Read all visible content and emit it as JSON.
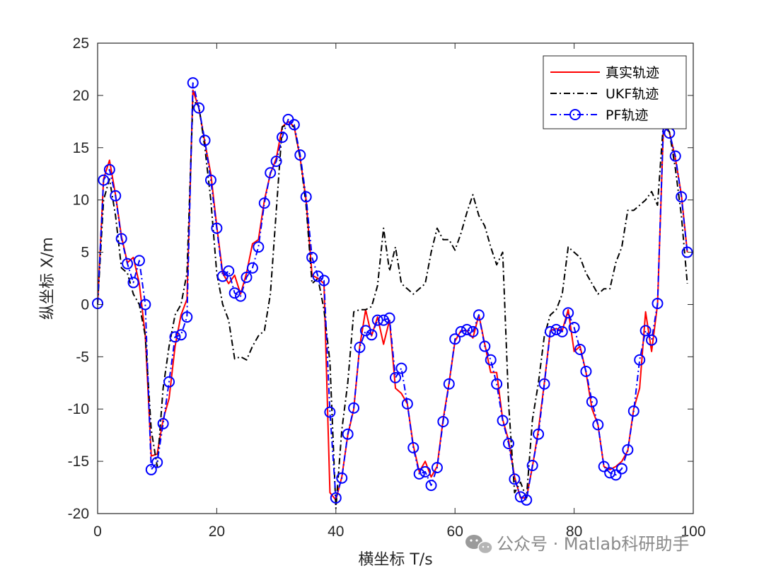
{
  "chart_data": {
    "type": "line",
    "title": "",
    "xlabel": "横坐标 T/s",
    "ylabel": "纵坐标 X/m",
    "xlim": [
      0,
      100
    ],
    "ylim": [
      -20,
      25
    ],
    "xticks": [
      0,
      20,
      40,
      60,
      80,
      100
    ],
    "yticks": [
      -20,
      -15,
      -10,
      -5,
      0,
      5,
      10,
      15,
      20,
      25
    ],
    "grid": false,
    "legend_position": "top-right",
    "series": [
      {
        "name": "真实轨迹",
        "color": "#ff0000",
        "style": "solid",
        "marker": "none",
        "x": [
          0,
          1,
          2,
          3,
          4,
          5,
          6,
          7,
          8,
          9,
          10,
          11,
          12,
          13,
          14,
          15,
          16,
          17,
          18,
          19,
          20,
          21,
          22,
          23,
          24,
          25,
          26,
          27,
          28,
          29,
          30,
          31,
          32,
          33,
          34,
          35,
          36,
          37,
          38,
          39,
          40,
          41,
          42,
          43,
          44,
          45,
          46,
          47,
          48,
          49,
          50,
          51,
          52,
          53,
          54,
          55,
          56,
          57,
          58,
          59,
          60,
          61,
          62,
          63,
          64,
          65,
          66,
          67,
          68,
          69,
          70,
          71,
          72,
          73,
          74,
          75,
          76,
          77,
          78,
          79,
          80,
          81,
          82,
          83,
          84,
          85,
          86,
          87,
          88,
          89,
          90,
          91,
          92,
          93,
          94,
          95,
          96,
          97,
          98,
          99
        ],
        "y": [
          0,
          12,
          13.8,
          10.5,
          6.5,
          4,
          4.5,
          2,
          -3,
          -14.5,
          -14.3,
          -11,
          -9,
          -4,
          -1,
          0.5,
          20.5,
          18.8,
          15.5,
          12.5,
          7.5,
          3,
          2,
          2.8,
          1,
          3,
          5.8,
          6.2,
          10,
          12.5,
          14,
          17,
          17.5,
          17,
          14,
          10,
          2.8,
          2.5,
          2,
          -18,
          -18.7,
          -16.5,
          -12.5,
          -10,
          -4,
          -0.5,
          -3,
          -1.2,
          -3.8,
          -1.5,
          -8,
          -8.5,
          -9.5,
          -13.5,
          -16,
          -15,
          -16.5,
          -15.5,
          -11,
          -7.5,
          -3.5,
          -2.5,
          -2.5,
          -3.2,
          -1,
          -3.8,
          -6.5,
          -6.5,
          -11,
          -13,
          -16.5,
          -18.5,
          -18.5,
          -15.5,
          -12,
          -7.5,
          -2.5,
          -2.3,
          -2.5,
          -0.5,
          -4.5,
          -4,
          -6.5,
          -10,
          -11.5,
          -15.5,
          -15.8,
          -15.5,
          -15,
          -14,
          -10,
          -8,
          -0.7,
          -4.5,
          0,
          17,
          16.5,
          14,
          10.5,
          5
        ]
      },
      {
        "name": "UKF轨迹",
        "color": "#000000",
        "style": "dashdot",
        "marker": "none",
        "x": [
          0,
          1,
          2,
          3,
          4,
          5,
          6,
          7,
          8,
          9,
          10,
          11,
          12,
          13,
          14,
          15,
          16,
          17,
          18,
          19,
          20,
          21,
          22,
          23,
          24,
          25,
          26,
          27,
          28,
          29,
          30,
          31,
          32,
          33,
          34,
          35,
          36,
          37,
          38,
          39,
          40,
          41,
          42,
          43,
          44,
          45,
          46,
          47,
          48,
          49,
          50,
          51,
          52,
          53,
          54,
          55,
          56,
          57,
          58,
          59,
          60,
          61,
          62,
          63,
          64,
          65,
          66,
          67,
          68,
          69,
          70,
          71,
          72,
          73,
          74,
          75,
          76,
          77,
          78,
          79,
          80,
          81,
          82,
          83,
          84,
          85,
          86,
          87,
          88,
          89,
          90,
          91,
          92,
          93,
          94,
          95,
          96,
          97,
          98,
          99
        ],
        "y": [
          0,
          10,
          12,
          8.5,
          3.5,
          3,
          1,
          0,
          -3,
          -12,
          -15.5,
          -8,
          -4,
          -1,
          0,
          3,
          19.5,
          19,
          15,
          10,
          3,
          0,
          -1.5,
          -5.2,
          -5,
          -5.3,
          -4,
          -3,
          -2.5,
          1,
          9,
          17,
          17.2,
          17,
          14,
          9.5,
          2,
          2.5,
          -0.5,
          -5.5,
          -19.5,
          -12,
          -7.5,
          -0.7,
          -0.5,
          -0.5,
          -0.2,
          1.8,
          7.3,
          3.2,
          5.5,
          2,
          1.5,
          1,
          1.5,
          2,
          5,
          7.3,
          6.2,
          6.2,
          5.2,
          6.8,
          8.8,
          10.5,
          8.5,
          7.5,
          5.5,
          3.8,
          5,
          -9.5,
          -18,
          -17,
          -18.5,
          -11,
          -7.5,
          -3,
          -1,
          -0.5,
          1,
          5.5,
          5,
          4.5,
          3,
          2,
          1,
          1.5,
          1.5,
          4,
          5.5,
          9,
          9,
          9.5,
          10,
          10.8,
          9.5,
          17.5,
          16.5,
          13,
          8.5,
          2
        ]
      },
      {
        "name": "PF轨迹",
        "color": "#0000ff",
        "style": "dashdot",
        "marker": "circle",
        "x": [
          0,
          1,
          2,
          3,
          4,
          5,
          6,
          7,
          8,
          9,
          10,
          11,
          12,
          13,
          14,
          15,
          16,
          17,
          18,
          19,
          20,
          21,
          22,
          23,
          24,
          25,
          26,
          27,
          28,
          29,
          30,
          31,
          32,
          33,
          34,
          35,
          36,
          37,
          38,
          39,
          40,
          41,
          42,
          43,
          44,
          45,
          46,
          47,
          48,
          49,
          50,
          51,
          52,
          53,
          54,
          55,
          56,
          57,
          58,
          59,
          60,
          61,
          62,
          63,
          64,
          65,
          66,
          67,
          68,
          69,
          70,
          71,
          72,
          73,
          74,
          75,
          76,
          77,
          78,
          79,
          80,
          81,
          82,
          83,
          84,
          85,
          86,
          87,
          88,
          89,
          90,
          91,
          92,
          93,
          94,
          95,
          96,
          97,
          98,
          99
        ],
        "y": [
          0.1,
          11.9,
          12.9,
          10.4,
          6.3,
          3.9,
          2.1,
          4.2,
          0,
          -15.8,
          -15.1,
          -11.4,
          -7.4,
          -3.1,
          -2.9,
          -1.2,
          21.2,
          18.8,
          15.7,
          11.9,
          7.3,
          2.7,
          3.2,
          1.1,
          0.8,
          2.6,
          3.5,
          5.5,
          9.7,
          12.6,
          13.7,
          16.0,
          17.7,
          17.2,
          14.3,
          10.3,
          4.5,
          2.7,
          2.3,
          -10.3,
          -18.5,
          -16.6,
          -12.4,
          -9.9,
          -4.1,
          -2.5,
          -2.9,
          -1.5,
          -1.5,
          -1.3,
          -7.0,
          -6.1,
          -9.5,
          -13.7,
          -16.2,
          -16.0,
          -17.3,
          -15.6,
          -11.2,
          -7.6,
          -3.3,
          -2.6,
          -2.4,
          -2.6,
          -1.0,
          -4.0,
          -5.3,
          -7.6,
          -11.1,
          -13.3,
          -16.7,
          -18.4,
          -18.7,
          -15.4,
          -12.4,
          -7.6,
          -2.6,
          -2.4,
          -2.6,
          -0.8,
          -2.2,
          -4.3,
          -6.4,
          -9.3,
          -11.5,
          -15.5,
          -16.1,
          -16.3,
          -15.7,
          -13.9,
          -10.2,
          -5.3,
          -2.5,
          -3.4,
          0.1,
          17.3,
          16.4,
          14.2,
          10.3,
          5.0
        ]
      }
    ]
  },
  "watermark": {
    "icon": "wechat-icon",
    "text": "公众号 · Matlab科研助手",
    "color": "#8a8a8a"
  }
}
